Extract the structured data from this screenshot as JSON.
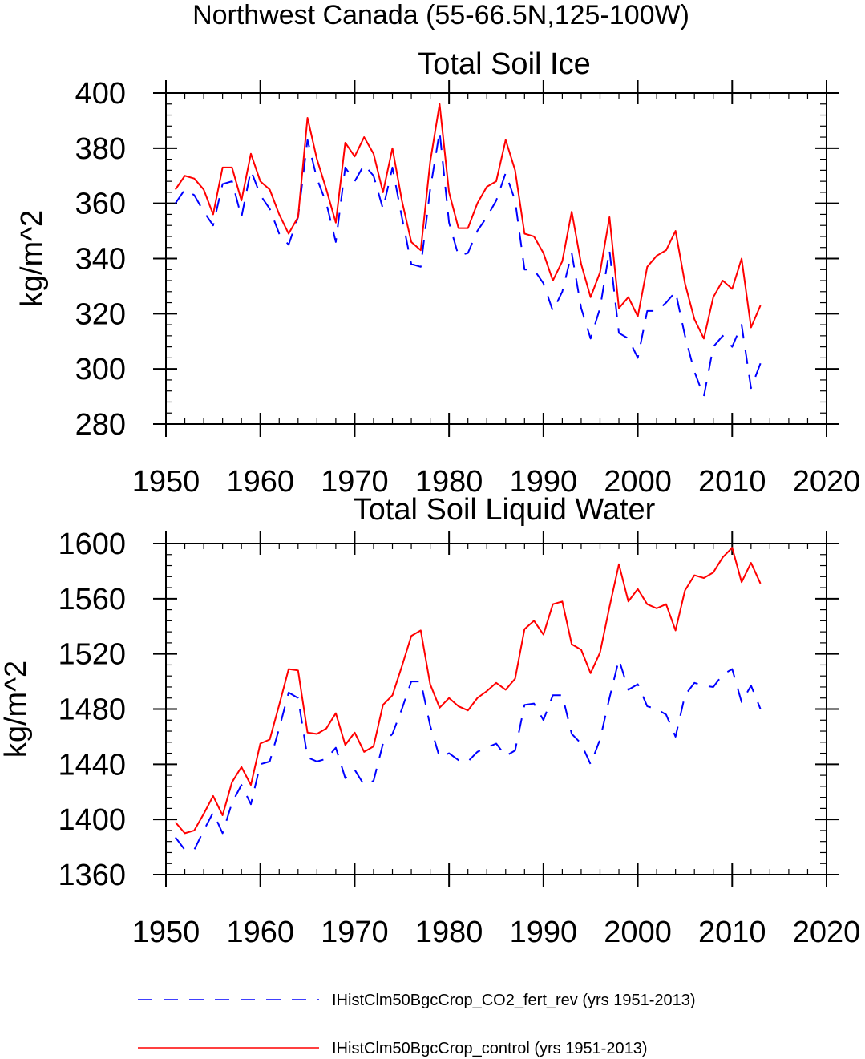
{
  "suptitle": "Northwest Canada (55-66.5N,125-100W)",
  "legend": [
    {
      "label": "IHistClm50BgcCrop_CO2_fert_rev (yrs 1951-2013)",
      "color": "#0000ff",
      "style": "dashed"
    },
    {
      "label": "IHistClm50BgcCrop_control (yrs 1951-2013)",
      "color": "#ff0000",
      "style": "solid"
    }
  ],
  "chart_data": [
    {
      "type": "line",
      "title": "Total Soil Ice",
      "xlabel": "",
      "ylabel": "kg/m^2",
      "xlim": [
        1950,
        2020
      ],
      "ylim": [
        280,
        400
      ],
      "xticks": [
        1950,
        1960,
        1970,
        1980,
        1990,
        2000,
        2010,
        2020
      ],
      "yticks": [
        280,
        300,
        320,
        340,
        360,
        380,
        400
      ],
      "x": [
        1951,
        1952,
        1953,
        1954,
        1955,
        1956,
        1957,
        1958,
        1959,
        1960,
        1961,
        1962,
        1963,
        1964,
        1965,
        1966,
        1967,
        1968,
        1969,
        1970,
        1971,
        1972,
        1973,
        1974,
        1975,
        1976,
        1977,
        1978,
        1979,
        1980,
        1981,
        1982,
        1983,
        1984,
        1985,
        1986,
        1987,
        1988,
        1989,
        1990,
        1991,
        1992,
        1993,
        1994,
        1995,
        1996,
        1997,
        1998,
        1999,
        2000,
        2001,
        2002,
        2003,
        2004,
        2005,
        2006,
        2007,
        2008,
        2009,
        2010,
        2011,
        2012,
        2013
      ],
      "series": [
        {
          "name": "IHistClm50BgcCrop_CO2_fert_rev (yrs 1951-2013)",
          "color": "#0000ff",
          "style": "dashed",
          "values": [
            360,
            365,
            363,
            357,
            352,
            367,
            368,
            355,
            372,
            363,
            358,
            349,
            345,
            355,
            383,
            369,
            360,
            346,
            373,
            368,
            374,
            370,
            358,
            373,
            355,
            338,
            337,
            365,
            386,
            353,
            341,
            342,
            350,
            355,
            361,
            371,
            361,
            336,
            336,
            331,
            321,
            328,
            342,
            322,
            311,
            322,
            343,
            313,
            311,
            304,
            321,
            321,
            324,
            328,
            312,
            299,
            290,
            308,
            312,
            308,
            316,
            293,
            302
          ]
        },
        {
          "name": "IHistClm50BgcCrop_control (yrs 1951-2013)",
          "color": "#ff0000",
          "style": "solid",
          "values": [
            365,
            370,
            369,
            365,
            356,
            373,
            373,
            361,
            378,
            368,
            365,
            356,
            349,
            355,
            391,
            376,
            365,
            353,
            382,
            377,
            384,
            378,
            364,
            380,
            361,
            346,
            343,
            375,
            396,
            364,
            351,
            351,
            360,
            366,
            368,
            383,
            372,
            349,
            348,
            342,
            332,
            339,
            357,
            338,
            326,
            335,
            355,
            322,
            326,
            319,
            337,
            341,
            343,
            350,
            331,
            318,
            311,
            326,
            332,
            329,
            340,
            315,
            323
          ]
        }
      ]
    },
    {
      "type": "line",
      "title": "Total Soil Liquid Water",
      "xlabel": "",
      "ylabel": "kg/m^2",
      "xlim": [
        1950,
        2020
      ],
      "ylim": [
        1360,
        1600
      ],
      "xticks": [
        1950,
        1960,
        1970,
        1980,
        1990,
        2000,
        2010,
        2020
      ],
      "yticks": [
        1360,
        1400,
        1440,
        1480,
        1520,
        1560,
        1600
      ],
      "x": [
        1951,
        1952,
        1953,
        1954,
        1955,
        1956,
        1957,
        1958,
        1959,
        1960,
        1961,
        1962,
        1963,
        1964,
        1965,
        1966,
        1967,
        1968,
        1969,
        1970,
        1971,
        1972,
        1973,
        1974,
        1975,
        1976,
        1977,
        1978,
        1979,
        1980,
        1981,
        1982,
        1983,
        1984,
        1985,
        1986,
        1987,
        1988,
        1989,
        1990,
        1991,
        1992,
        1993,
        1994,
        1995,
        1996,
        1997,
        1998,
        1999,
        2000,
        2001,
        2002,
        2003,
        2004,
        2005,
        2006,
        2007,
        2008,
        2009,
        2010,
        2011,
        2012,
        2013
      ],
      "series": [
        {
          "name": "IHistClm50BgcCrop_CO2_fert_rev (yrs 1951-2013)",
          "color": "#0000ff",
          "style": "dashed",
          "values": [
            1387,
            1378,
            1378,
            1392,
            1405,
            1390,
            1412,
            1425,
            1411,
            1440,
            1442,
            1466,
            1492,
            1488,
            1445,
            1442,
            1444,
            1452,
            1430,
            1436,
            1425,
            1428,
            1455,
            1462,
            1480,
            1500,
            1500,
            1468,
            1445,
            1448,
            1443,
            1442,
            1449,
            1452,
            1455,
            1446,
            1450,
            1483,
            1484,
            1472,
            1490,
            1490,
            1462,
            1455,
            1440,
            1458,
            1488,
            1516,
            1494,
            1498,
            1482,
            1480,
            1476,
            1460,
            1490,
            1499,
            1497,
            1496,
            1505,
            1509,
            1485,
            1497,
            1480
          ]
        },
        {
          "name": "IHistClm50BgcCrop_control (yrs 1951-2013)",
          "color": "#ff0000",
          "style": "solid",
          "values": [
            1398,
            1390,
            1392,
            1404,
            1417,
            1403,
            1427,
            1438,
            1425,
            1455,
            1458,
            1483,
            1509,
            1508,
            1463,
            1462,
            1466,
            1477,
            1454,
            1463,
            1449,
            1453,
            1483,
            1490,
            1511,
            1533,
            1537,
            1498,
            1481,
            1488,
            1482,
            1479,
            1488,
            1493,
            1499,
            1494,
            1502,
            1538,
            1544,
            1534,
            1556,
            1558,
            1527,
            1523,
            1506,
            1521,
            1554,
            1585,
            1558,
            1567,
            1556,
            1553,
            1556,
            1537,
            1566,
            1577,
            1575,
            1579,
            1590,
            1597,
            1572,
            1586,
            1571
          ]
        }
      ]
    }
  ]
}
